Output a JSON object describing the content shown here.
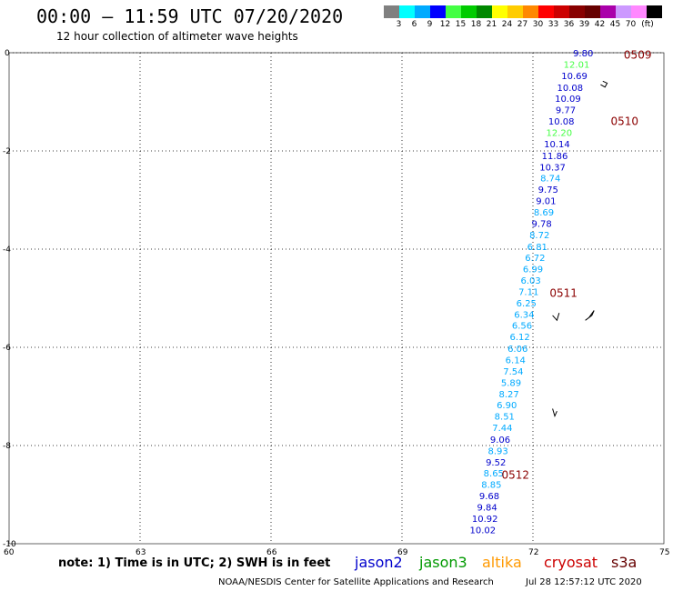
{
  "header": {
    "title": "00:00 – 11:59 UTC 07/20/2020",
    "subtitle": "12 hour collection of altimeter wave heights"
  },
  "legend": {
    "colors": [
      "#808080",
      "#00ffff",
      "#00aaff",
      "#0000ff",
      "#44ff44",
      "#00cc00",
      "#008800",
      "#ffff00",
      "#ffcc00",
      "#ff8800",
      "#ff0000",
      "#cc0000",
      "#880000",
      "#660000",
      "#aa00aa",
      "#cc99ff",
      "#ff88ff",
      "#000000"
    ],
    "labels": [
      "3",
      "6",
      "9",
      "12",
      "15",
      "18",
      "21",
      "24",
      "27",
      "30",
      "33",
      "36",
      "39",
      "42",
      "45",
      "70"
    ],
    "unit": "(ft)"
  },
  "footer": {
    "note": "note: 1) Time is in UTC; 2) SWH is in feet",
    "missions": [
      {
        "name": "jason2",
        "color": "#0000cc"
      },
      {
        "name": "jason3",
        "color": "#009900"
      },
      {
        "name": "altika",
        "color": "#ff9900"
      },
      {
        "name": "cryosat",
        "color": "#cc0000"
      },
      {
        "name": "s3a",
        "color": "#660000"
      }
    ],
    "credit": "NOAA/NESDIS Center for Satellite Applications and Research",
    "timestamp": "Jul 28 12:57:12 UTC 2020"
  },
  "chart_data": {
    "type": "scatter",
    "xlim": [
      60,
      75
    ],
    "ylim": [
      -10,
      0
    ],
    "x_ticks": [
      "60",
      "63",
      "66",
      "69",
      "72",
      "75"
    ],
    "y_ticks": [
      "0",
      "-2",
      "-4",
      "-6",
      "-8",
      "-10"
    ],
    "grid": true,
    "time_labels": [
      {
        "text": "0509",
        "lon": 74.4,
        "lat": -0.05
      },
      {
        "text": "0510",
        "lon": 74.1,
        "lat": -1.4
      },
      {
        "text": "0511",
        "lon": 72.7,
        "lat": -4.9
      },
      {
        "text": "0512",
        "lon": 71.6,
        "lat": -8.6
      }
    ],
    "points": [
      {
        "v": "9.80",
        "lon": 73.15,
        "lat": 0.0,
        "c": "#0000cc"
      },
      {
        "v": "12.01",
        "lon": 73.0,
        "lat": -0.23,
        "c": "#44ff44"
      },
      {
        "v": "10.69",
        "lon": 72.95,
        "lat": -0.46,
        "c": "#0000cc"
      },
      {
        "v": "10.08",
        "lon": 72.85,
        "lat": -0.7,
        "c": "#0000cc"
      },
      {
        "v": "10.09",
        "lon": 72.8,
        "lat": -0.93,
        "c": "#0000cc"
      },
      {
        "v": "9.77",
        "lon": 72.75,
        "lat": -1.16,
        "c": "#0000cc"
      },
      {
        "v": "10.08",
        "lon": 72.65,
        "lat": -1.39,
        "c": "#0000cc"
      },
      {
        "v": "12.20",
        "lon": 72.6,
        "lat": -1.62,
        "c": "#44ff44"
      },
      {
        "v": "10.14",
        "lon": 72.55,
        "lat": -1.85,
        "c": "#0000cc"
      },
      {
        "v": "11.86",
        "lon": 72.5,
        "lat": -2.09,
        "c": "#0000cc"
      },
      {
        "v": "10.37",
        "lon": 72.45,
        "lat": -2.32,
        "c": "#0000cc"
      },
      {
        "v": "8.74",
        "lon": 72.4,
        "lat": -2.55,
        "c": "#00aaff"
      },
      {
        "v": "9.75",
        "lon": 72.35,
        "lat": -2.78,
        "c": "#0000cc"
      },
      {
        "v": "9.01",
        "lon": 72.3,
        "lat": -3.01,
        "c": "#0000cc"
      },
      {
        "v": "8.69",
        "lon": 72.25,
        "lat": -3.24,
        "c": "#00aaff"
      },
      {
        "v": "9.78",
        "lon": 72.2,
        "lat": -3.47,
        "c": "#0000cc"
      },
      {
        "v": "8.72",
        "lon": 72.15,
        "lat": -3.7,
        "c": "#00aaff"
      },
      {
        "v": "6.81",
        "lon": 72.1,
        "lat": -3.94,
        "c": "#00aaff"
      },
      {
        "v": "6.72",
        "lon": 72.05,
        "lat": -4.17,
        "c": "#00aaff"
      },
      {
        "v": "6.99",
        "lon": 72.0,
        "lat": -4.4,
        "c": "#00aaff"
      },
      {
        "v": "6.03",
        "lon": 71.95,
        "lat": -4.63,
        "c": "#00aaff"
      },
      {
        "v": "7.11",
        "lon": 71.9,
        "lat": -4.86,
        "c": "#00aaff"
      },
      {
        "v": "6.25",
        "lon": 71.85,
        "lat": -5.09,
        "c": "#00aaff"
      },
      {
        "v": "6.34",
        "lon": 71.8,
        "lat": -5.32,
        "c": "#00aaff"
      },
      {
        "v": "6.56",
        "lon": 71.75,
        "lat": -5.55,
        "c": "#00aaff"
      },
      {
        "v": "6.12",
        "lon": 71.7,
        "lat": -5.78,
        "c": "#00aaff"
      },
      {
        "v": "6.06",
        "lon": 71.65,
        "lat": -6.02,
        "c": "#00aaff"
      },
      {
        "v": "6.14",
        "lon": 71.6,
        "lat": -6.25,
        "c": "#00aaff"
      },
      {
        "v": "7.54",
        "lon": 71.55,
        "lat": -6.48,
        "c": "#00aaff"
      },
      {
        "v": "5.89",
        "lon": 71.5,
        "lat": -6.71,
        "c": "#00aaff"
      },
      {
        "v": "8.27",
        "lon": 71.45,
        "lat": -6.94,
        "c": "#00aaff"
      },
      {
        "v": "6.90",
        "lon": 71.4,
        "lat": -7.17,
        "c": "#00aaff"
      },
      {
        "v": "8.51",
        "lon": 71.35,
        "lat": -7.4,
        "c": "#00aaff"
      },
      {
        "v": "7.44",
        "lon": 71.3,
        "lat": -7.63,
        "c": "#00aaff"
      },
      {
        "v": "9.06",
        "lon": 71.25,
        "lat": -7.87,
        "c": "#0000cc"
      },
      {
        "v": "8.93",
        "lon": 71.2,
        "lat": -8.1,
        "c": "#00aaff"
      },
      {
        "v": "9.52",
        "lon": 71.15,
        "lat": -8.33,
        "c": "#0000cc"
      },
      {
        "v": "8.65",
        "lon": 71.1,
        "lat": -8.56,
        "c": "#00aaff"
      },
      {
        "v": "8.85",
        "lon": 71.05,
        "lat": -8.79,
        "c": "#00aaff"
      },
      {
        "v": "9.68",
        "lon": 71.0,
        "lat": -9.02,
        "c": "#0000cc"
      },
      {
        "v": "9.84",
        "lon": 70.95,
        "lat": -9.25,
        "c": "#0000cc"
      },
      {
        "v": "10.92",
        "lon": 70.9,
        "lat": -9.48,
        "c": "#0000cc"
      },
      {
        "v": "10.02",
        "lon": 70.85,
        "lat": -9.71,
        "c": "#0000cc"
      }
    ]
  }
}
